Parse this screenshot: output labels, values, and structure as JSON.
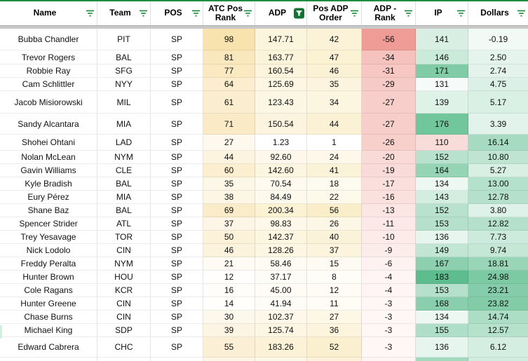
{
  "header": {
    "columns": [
      {
        "key": "name",
        "label": "Name",
        "filter": "default"
      },
      {
        "key": "team",
        "label": "Team",
        "filter": "default"
      },
      {
        "key": "pos",
        "label": "POS",
        "filter": "default"
      },
      {
        "key": "atc",
        "label": "ATC Pos Rank",
        "filter": "default"
      },
      {
        "key": "adp",
        "label": "ADP",
        "filter": "active"
      },
      {
        "key": "order",
        "label": "Pos ADP Order",
        "filter": "default"
      },
      {
        "key": "diff",
        "label": "ADP - Rank",
        "filter": "default"
      },
      {
        "key": "ip",
        "label": "IP",
        "filter": "default"
      },
      {
        "key": "dollars",
        "label": "Dollars",
        "filter": "default"
      }
    ]
  },
  "rows": [
    {
      "name": "Bubba Chandler",
      "team": "PIT",
      "pos": "SP",
      "atc": "98",
      "adp": "147.71",
      "order": "42",
      "diff": "-56",
      "ip": "141",
      "dollars": "-0.19"
    },
    {
      "name": "Trevor Rogers",
      "team": "BAL",
      "pos": "SP",
      "atc": "81",
      "adp": "163.77",
      "order": "47",
      "diff": "-34",
      "ip": "146",
      "dollars": "2.50"
    },
    {
      "name": "Robbie Ray",
      "team": "SFG",
      "pos": "SP",
      "atc": "77",
      "adp": "160.54",
      "order": "46",
      "diff": "-31",
      "ip": "171",
      "dollars": "2.74"
    },
    {
      "name": "Cam Schlittler",
      "team": "NYY",
      "pos": "SP",
      "atc": "64",
      "adp": "125.69",
      "order": "35",
      "diff": "-29",
      "ip": "131",
      "dollars": "4.75"
    },
    {
      "name": "Jacob Misiorowski",
      "team": "MIL",
      "pos": "SP",
      "atc": "61",
      "adp": "123.43",
      "order": "34",
      "diff": "-27",
      "ip": "139",
      "dollars": "5.17"
    },
    {
      "name": "Sandy Alcantara",
      "team": "MIA",
      "pos": "SP",
      "atc": "71",
      "adp": "150.54",
      "order": "44",
      "diff": "-27",
      "ip": "176",
      "dollars": "3.39"
    },
    {
      "name": "Shohei Ohtani",
      "team": "LAD",
      "pos": "SP",
      "atc": "27",
      "adp": "1.23",
      "order": "1",
      "diff": "-26",
      "ip": "110",
      "dollars": "16.14"
    },
    {
      "name": "Nolan McLean",
      "team": "NYM",
      "pos": "SP",
      "atc": "44",
      "adp": "92.60",
      "order": "24",
      "diff": "-20",
      "ip": "152",
      "dollars": "10.80"
    },
    {
      "name": "Gavin Williams",
      "team": "CLE",
      "pos": "SP",
      "atc": "60",
      "adp": "142.60",
      "order": "41",
      "diff": "-19",
      "ip": "164",
      "dollars": "5.27"
    },
    {
      "name": "Kyle Bradish",
      "team": "BAL",
      "pos": "SP",
      "atc": "35",
      "adp": "70.54",
      "order": "18",
      "diff": "-17",
      "ip": "134",
      "dollars": "13.00"
    },
    {
      "name": "Eury Pérez",
      "team": "MIA",
      "pos": "SP",
      "atc": "38",
      "adp": "84.49",
      "order": "22",
      "diff": "-16",
      "ip": "143",
      "dollars": "12.78"
    },
    {
      "name": "Shane Baz",
      "team": "BAL",
      "pos": "SP",
      "atc": "69",
      "adp": "200.34",
      "order": "56",
      "diff": "-13",
      "ip": "152",
      "dollars": "3.80"
    },
    {
      "name": "Spencer Strider",
      "team": "ATL",
      "pos": "SP",
      "atc": "37",
      "adp": "98.83",
      "order": "26",
      "diff": "-11",
      "ip": "153",
      "dollars": "12.82"
    },
    {
      "name": "Trey Yesavage",
      "team": "TOR",
      "pos": "SP",
      "atc": "50",
      "adp": "142.37",
      "order": "40",
      "diff": "-10",
      "ip": "136",
      "dollars": "7.73"
    },
    {
      "name": "Nick Lodolo",
      "team": "CIN",
      "pos": "SP",
      "atc": "46",
      "adp": "128.26",
      "order": "37",
      "diff": "-9",
      "ip": "149",
      "dollars": "9.74"
    },
    {
      "name": "Freddy Peralta",
      "team": "NYM",
      "pos": "SP",
      "atc": "21",
      "adp": "58.46",
      "order": "15",
      "diff": "-6",
      "ip": "167",
      "dollars": "18.81"
    },
    {
      "name": "Hunter Brown",
      "team": "HOU",
      "pos": "SP",
      "atc": "12",
      "adp": "37.17",
      "order": "8",
      "diff": "-4",
      "ip": "183",
      "dollars": "24.98"
    },
    {
      "name": "Cole Ragans",
      "team": "KCR",
      "pos": "SP",
      "atc": "16",
      "adp": "45.00",
      "order": "12",
      "diff": "-4",
      "ip": "153",
      "dollars": "23.21"
    },
    {
      "name": "Hunter Greene",
      "team": "CIN",
      "pos": "SP",
      "atc": "14",
      "adp": "41.94",
      "order": "11",
      "diff": "-3",
      "ip": "168",
      "dollars": "23.82"
    },
    {
      "name": "Chase Burns",
      "team": "CIN",
      "pos": "SP",
      "atc": "30",
      "adp": "102.37",
      "order": "27",
      "diff": "-3",
      "ip": "134",
      "dollars": "14.74"
    },
    {
      "name": "Michael King",
      "team": "SDP",
      "pos": "SP",
      "atc": "39",
      "adp": "125.74",
      "order": "36",
      "diff": "-3",
      "ip": "155",
      "dollars": "12.57"
    },
    {
      "name": "Edward Cabrera",
      "team": "CHC",
      "pos": "SP",
      "atc": "55",
      "adp": "183.26",
      "order": "52",
      "diff": "-3",
      "ip": "136",
      "dollars": "6.12"
    }
  ],
  "partial_next_row_colors": {
    "name": "#ffffff",
    "team": "#ffffff",
    "pos": "#ffffff",
    "atc": "#fdf6e4",
    "adp": "#fdf7e8",
    "order": "#fcf3da",
    "diff": "#fdf4f3",
    "ip": "#a0dabf",
    "dollars": "#d2ecdf"
  },
  "left_edge_sliver_color": "#d5eee2",
  "colors": {
    "top_border": "#1e8e3e",
    "filter_icon_green": "#1e8e3e",
    "active_filter_bg": "#137333",
    "freeze_bar": "#c9c9c9",
    "scales": {
      "atc": {
        "stops": [
          [
            10,
            "#ffffff"
          ],
          [
            98,
            "#f8e2ad"
          ]
        ]
      },
      "adp": {
        "stops": [
          [
            1,
            "#ffffff"
          ],
          [
            240,
            "#faeeca"
          ]
        ]
      },
      "order": {
        "stops": [
          [
            1,
            "#ffffff"
          ],
          [
            56,
            "#faeeca"
          ]
        ]
      },
      "diff": {
        "stops": [
          [
            -56,
            "#ee9c95"
          ],
          [
            -3,
            "#fef7f6"
          ]
        ]
      },
      "ip": {
        "stops": [
          [
            60,
            "#e67c73"
          ],
          [
            128,
            "#ffffff"
          ],
          [
            185,
            "#57bb8a"
          ]
        ]
      },
      "dollars": {
        "stops": [
          [
            -3,
            "#ffffff"
          ],
          [
            33,
            "#57bb8a"
          ]
        ]
      }
    }
  }
}
